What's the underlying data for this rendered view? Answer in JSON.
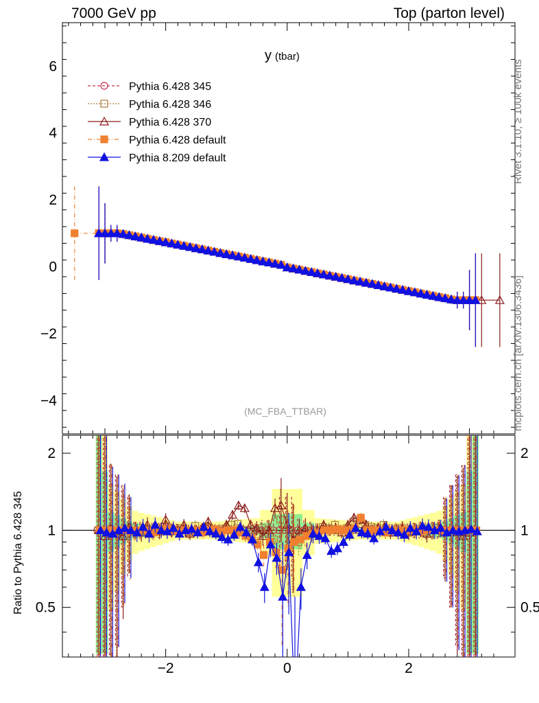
{
  "header": {
    "left_title": "7000 GeV pp",
    "right_title": "Top (parton level)"
  },
  "side_labels": {
    "rivet": "Rivet 3.1.10, ≥ 100k events",
    "mcplots": "mcplots.cern.ch [arXiv:1306.3436]"
  },
  "chart_data": {
    "type": "line",
    "title_main": "y",
    "title_sub": "(tbar)",
    "analysis_label": "(MC_FBA_TTBAR)",
    "ratio_ylabel": "Ratio to Pythia 6.428 345",
    "main_yrange": [
      -5,
      7.3
    ],
    "ratio_yrange": [
      0.32,
      2.35
    ],
    "xrange": [
      -3.7,
      3.75
    ],
    "x_ticks": [
      -2,
      0,
      2
    ],
    "x_tick_labels": [
      "−2",
      "0",
      "2"
    ],
    "main_y_ticks": [
      -4,
      -2,
      0,
      2,
      4,
      6
    ],
    "main_y_tick_labels": [
      "−4",
      "−2",
      "0",
      "2",
      "4",
      "6"
    ],
    "ratio_y_ticks": [
      0.5,
      1,
      2
    ],
    "ratio_y_tick_labels": [
      "0.5",
      "1",
      "2"
    ],
    "slope": -0.355,
    "plateau": 1.0,
    "bin_centers": [
      -3.1,
      -3.0,
      -2.9,
      -2.8,
      -2.7,
      -2.6,
      -2.5,
      -2.4,
      -2.3,
      -2.2,
      -2.1,
      -2.0,
      -1.9,
      -1.8,
      -1.7,
      -1.6,
      -1.5,
      -1.4,
      -1.3,
      -1.2,
      -1.1,
      -1.0,
      -0.9,
      -0.8,
      -0.7,
      -0.6,
      -0.5,
      -0.4,
      -0.3,
      -0.2,
      -0.1,
      0.0,
      0.1,
      0.2,
      0.3,
      0.4,
      0.5,
      0.6,
      0.7,
      0.8,
      0.9,
      1.0,
      1.1,
      1.2,
      1.3,
      1.4,
      1.5,
      1.6,
      1.7,
      1.8,
      1.9,
      2.0,
      2.1,
      2.2,
      2.3,
      2.4,
      2.5,
      2.6,
      2.7,
      2.8,
      2.9,
      3.0,
      3.1
    ],
    "series": [
      {
        "name": "Pythia 6.428 345",
        "color": "#c0304a",
        "marker": "circle-open",
        "dash": "4,3",
        "ratio": [
          1,
          1,
          1,
          1,
          1,
          1,
          1,
          1,
          1,
          1,
          1,
          1,
          1,
          1,
          1,
          1,
          1,
          1,
          1,
          1,
          1,
          1,
          1,
          1,
          1,
          1,
          1,
          1,
          1,
          1,
          1,
          1,
          1,
          1,
          1,
          1,
          1,
          1,
          1,
          1,
          1,
          1,
          1,
          1,
          1,
          1,
          1,
          1,
          1,
          1,
          1,
          1,
          1,
          1,
          1,
          1,
          1,
          1,
          1,
          1,
          1,
          1,
          1
        ]
      },
      {
        "name": "Pythia 6.428 346",
        "color": "#a87c3a",
        "marker": "square-open",
        "dash": "2,2",
        "ratio": [
          1.0,
          0.98,
          1.01,
          0.97,
          1.0,
          1.02,
          0.99,
          1.0,
          1.01,
          0.98,
          1.0,
          1.03,
          0.99,
          1.0,
          1.02,
          0.98,
          1.04,
          1.0,
          1.03,
          0.99,
          1.01,
          1.02,
          1.05,
          1.06,
          1.0,
          0.97,
          0.95,
          1.02,
          1.0,
          0.92,
          1.1,
          1.0,
          0.92,
          0.9,
          0.95,
          1.0,
          0.98,
          1.03,
          1.02,
          1.05,
          1.0,
          1.02,
          1.08,
          1.1,
          1.05,
          1.03,
          1.02,
          1.05,
          1.0,
          1.01,
          1.02,
          0.99,
          1.0,
          1.01,
          0.98,
          1.0,
          1.02,
          0.99,
          1.0,
          1.01,
          0.99,
          1.0,
          1.0
        ]
      },
      {
        "name": "Pythia 6.428 370",
        "color": "#8b1a1a",
        "marker": "triangle-open",
        "dash": "",
        "ratio": [
          1.0,
          0.95,
          1.02,
          0.97,
          0.95,
          1.03,
          1.0,
          0.98,
          1.05,
          1.0,
          0.99,
          1.1,
          1.0,
          1.0,
          1.05,
          0.97,
          1.0,
          1.02,
          1.08,
          1.0,
          0.97,
          1.05,
          1.15,
          1.25,
          1.22,
          1.05,
          1.02,
          0.95,
          1.0,
          1.22,
          1.25,
          1.05,
          0.92,
          1.0,
          1.02,
          0.98,
          1.0,
          1.05,
          1.0,
          1.02,
          0.98,
          1.05,
          1.12,
          1.1,
          1.05,
          1.0,
          1.02,
          1.03,
          0.98,
          1.0,
          1.02,
          0.98,
          1.0,
          1.01,
          0.97,
          1.0,
          1.02,
          0.98,
          1.0,
          0.98,
          0.95,
          0.98,
          1.0
        ]
      },
      {
        "name": "Pythia 6.428 default",
        "color": "#f08030",
        "marker": "square-filled",
        "dash": "6,3,1,3",
        "ratio": [
          1.0,
          1.0,
          1.0,
          1.0,
          1.0,
          0.99,
          1.0,
          1.0,
          1.0,
          0.98,
          1.0,
          1.01,
          1.0,
          0.99,
          1.0,
          1.0,
          1.0,
          0.98,
          1.0,
          1.01,
          0.99,
          1.0,
          1.0,
          0.98,
          0.95,
          0.93,
          0.88,
          0.8,
          0.9,
          0.82,
          0.7,
          0.85,
          0.9,
          0.92,
          0.95,
          0.97,
          0.98,
          1.0,
          1.0,
          1.01,
          1.0,
          1.0,
          1.02,
          1.12,
          1.0,
          1.0,
          1.0,
          0.98,
          1.0,
          1.0,
          1.0,
          1.0,
          1.0,
          0.99,
          1.0,
          1.0,
          1.0,
          1.0,
          1.0,
          1.0,
          1.0,
          1.0,
          1.0
        ]
      },
      {
        "name": "Pythia 8.209 default",
        "color": "#1010e0",
        "marker": "triangle-filled",
        "dash": "",
        "ratio": [
          1.0,
          0.98,
          0.97,
          1.0,
          1.02,
          1.0,
          0.98,
          1.03,
          0.97,
          1.05,
          1.0,
          0.99,
          1.02,
          0.97,
          1.0,
          1.01,
          0.98,
          1.03,
          0.99,
          0.97,
          0.94,
          0.92,
          0.96,
          1.03,
          0.98,
          0.92,
          0.75,
          0.6,
          0.88,
          0.78,
          0.55,
          0.82,
          0.2,
          0.6,
          0.8,
          0.97,
          0.95,
          0.93,
          0.83,
          0.85,
          0.9,
          0.96,
          1.02,
          0.98,
          0.97,
          0.93,
          0.99,
          1.03,
          1.0,
          0.98,
          0.96,
          1.02,
          0.99,
          1.04,
          1.03,
          1.0,
          1.02,
          0.98,
          1.0,
          0.99,
          1.0,
          1.01,
          0.99
        ]
      }
    ]
  }
}
